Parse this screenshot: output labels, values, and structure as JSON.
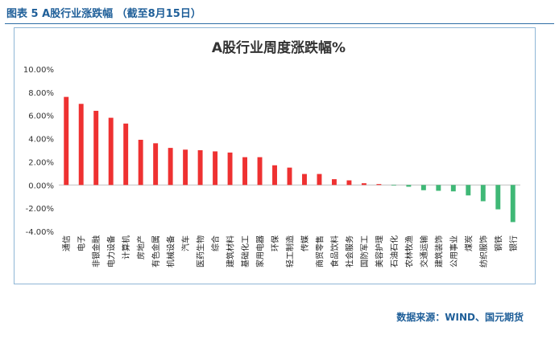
{
  "caption": "图表 5 A股行业涨跌幅 （截至8月15日）",
  "source": "数据来源：WIND、国元期货",
  "colors": {
    "positive": "#ee3131",
    "negative": "#3fb876",
    "caption": "#1f5f99"
  },
  "chart_data": {
    "type": "bar",
    "title": "A股行业周度涨跌幅%",
    "xlabel": "",
    "ylabel": "",
    "ylim": [
      -4,
      10
    ],
    "yticks": [
      "-4.00%",
      "-2.00%",
      "0.00%",
      "2.00%",
      "4.00%",
      "6.00%",
      "8.00%",
      "10.00%"
    ],
    "grid": false,
    "categories": [
      "通信",
      "电子",
      "非银金融",
      "电力设备",
      "计算机",
      "房地产",
      "有色金属",
      "机械设备",
      "汽车",
      "医药生物",
      "综合",
      "建筑材料",
      "基础化工",
      "家用电器",
      "环保",
      "轻工制造",
      "传媒",
      "商贸零售",
      "食品饮料",
      "社会服务",
      "国防军工",
      "美容护理",
      "石油石化",
      "农林牧渔",
      "交通运输",
      "建筑装饰",
      "公用事业",
      "煤炭",
      "纺织服饰",
      "钢铁",
      "银行"
    ],
    "values": [
      7.6,
      7.0,
      6.4,
      5.8,
      5.3,
      3.9,
      3.6,
      3.2,
      3.05,
      3.0,
      2.9,
      2.8,
      2.4,
      2.4,
      1.7,
      1.5,
      0.95,
      0.95,
      0.5,
      0.4,
      0.15,
      0.08,
      -0.05,
      -0.15,
      -0.45,
      -0.5,
      -0.55,
      -0.9,
      -1.4,
      -2.1,
      -3.2
    ]
  }
}
